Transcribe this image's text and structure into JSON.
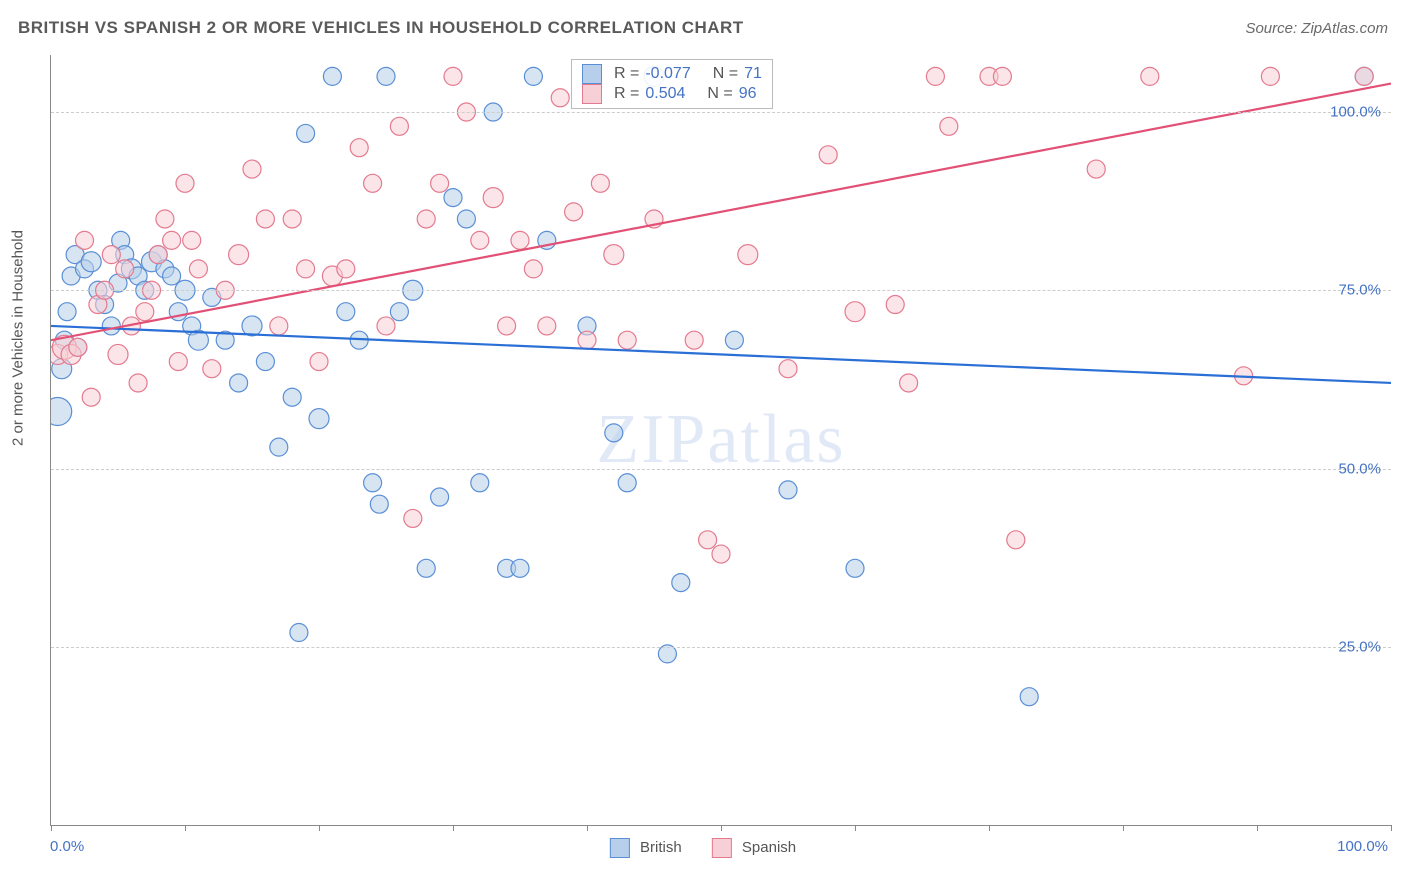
{
  "title": "BRITISH VS SPANISH 2 OR MORE VEHICLES IN HOUSEHOLD CORRELATION CHART",
  "source": "Source: ZipAtlas.com",
  "watermark": "ZIPatlas",
  "ylabel": "2 or more Vehicles in Household",
  "xaxis": {
    "min_label": "0.0%",
    "max_label": "100.0%",
    "xlim": [
      0,
      100
    ],
    "ticks": [
      0,
      10,
      20,
      30,
      40,
      50,
      60,
      70,
      80,
      90,
      100
    ]
  },
  "yaxis": {
    "ylim": [
      0,
      108
    ],
    "ticks": [
      25,
      50,
      75,
      100
    ],
    "tick_labels": [
      "25.0%",
      "50.0%",
      "75.0%",
      "100.0%"
    ]
  },
  "grid_color": "#cccccc",
  "background_color": "#ffffff",
  "legend": {
    "bottom": [
      {
        "label": "British",
        "fill": "#b7cfea",
        "stroke": "#5a8fd6"
      },
      {
        "label": "Spanish",
        "fill": "#f7cfd6",
        "stroke": "#e47a8f"
      }
    ],
    "top": [
      {
        "fill": "#b7cfea",
        "stroke": "#5a8fd6",
        "r_label": "R =",
        "r_val": "-0.077",
        "n_label": "N =",
        "n_val": "71"
      },
      {
        "fill": "#f7cfd6",
        "stroke": "#e47a8f",
        "r_label": "R =",
        "r_val": "0.504",
        "n_label": "N =",
        "n_val": "96"
      }
    ]
  },
  "series": {
    "british": {
      "type": "scatter",
      "fill": "#b7cfea",
      "stroke": "#5a8fd6",
      "marker_radius": 9,
      "fill_opacity": 0.55,
      "trend": {
        "x1": 0,
        "y1": 70,
        "x2": 100,
        "y2": 62,
        "color": "#2a6fd6",
        "width": 2.2
      },
      "points": [
        [
          0.5,
          58,
          14
        ],
        [
          0.8,
          64,
          10
        ],
        [
          1.0,
          68,
          9
        ],
        [
          1.2,
          72,
          9
        ],
        [
          1.5,
          77,
          9
        ],
        [
          1.8,
          80,
          9
        ],
        [
          2.0,
          67,
          9
        ],
        [
          2.5,
          78,
          9
        ],
        [
          3.0,
          79,
          10
        ],
        [
          3.5,
          75,
          9
        ],
        [
          4.0,
          73,
          9
        ],
        [
          4.5,
          70,
          9
        ],
        [
          5.0,
          76,
          9
        ],
        [
          5.2,
          82,
          9
        ],
        [
          5.5,
          80,
          9
        ],
        [
          6.0,
          78,
          10
        ],
        [
          6.5,
          77,
          9
        ],
        [
          7.0,
          75,
          9
        ],
        [
          7.5,
          79,
          10
        ],
        [
          8.0,
          80,
          9
        ],
        [
          8.5,
          78,
          9
        ],
        [
          9.0,
          77,
          9
        ],
        [
          9.5,
          72,
          9
        ],
        [
          10.0,
          75,
          10
        ],
        [
          10.5,
          70,
          9
        ],
        [
          11.0,
          68,
          10
        ],
        [
          12.0,
          74,
          9
        ],
        [
          13.0,
          68,
          9
        ],
        [
          14.0,
          62,
          9
        ],
        [
          15.0,
          70,
          10
        ],
        [
          16.0,
          65,
          9
        ],
        [
          17.0,
          53,
          9
        ],
        [
          18.0,
          60,
          9
        ],
        [
          18.5,
          27,
          9
        ],
        [
          19.0,
          97,
          9
        ],
        [
          20.0,
          57,
          10
        ],
        [
          21.0,
          105,
          9
        ],
        [
          22.0,
          72,
          9
        ],
        [
          23.0,
          68,
          9
        ],
        [
          24.0,
          48,
          9
        ],
        [
          24.5,
          45,
          9
        ],
        [
          25.0,
          105,
          9
        ],
        [
          26.0,
          72,
          9
        ],
        [
          27.0,
          75,
          10
        ],
        [
          28.0,
          36,
          9
        ],
        [
          29.0,
          46,
          9
        ],
        [
          30.0,
          88,
          9
        ],
        [
          31.0,
          85,
          9
        ],
        [
          32.0,
          48,
          9
        ],
        [
          33.0,
          100,
          9
        ],
        [
          34.0,
          36,
          9
        ],
        [
          35.0,
          36,
          9
        ],
        [
          36.0,
          105,
          9
        ],
        [
          37.0,
          82,
          9
        ],
        [
          40.0,
          70,
          9
        ],
        [
          42.0,
          55,
          9
        ],
        [
          43.0,
          48,
          9
        ],
        [
          45.0,
          105,
          10
        ],
        [
          46.0,
          24,
          9
        ],
        [
          47.0,
          34,
          9
        ],
        [
          51.0,
          68,
          9
        ],
        [
          55.0,
          47,
          9
        ],
        [
          60.0,
          36,
          9
        ],
        [
          73.0,
          18,
          9
        ],
        [
          98.0,
          105,
          9
        ]
      ]
    },
    "spanish": {
      "type": "scatter",
      "fill": "#f7cfd6",
      "stroke": "#e47a8f",
      "marker_radius": 9,
      "fill_opacity": 0.55,
      "trend": {
        "x1": 0,
        "y1": 68,
        "x2": 100,
        "y2": 104,
        "color": "#e25075",
        "width": 2.2
      },
      "points": [
        [
          0.5,
          66,
          10
        ],
        [
          1.0,
          67,
          12
        ],
        [
          1.5,
          66,
          10
        ],
        [
          2.0,
          67,
          9
        ],
        [
          2.5,
          82,
          9
        ],
        [
          3.0,
          60,
          9
        ],
        [
          3.5,
          73,
          9
        ],
        [
          4.0,
          75,
          9
        ],
        [
          4.5,
          80,
          9
        ],
        [
          5.0,
          66,
          10
        ],
        [
          5.5,
          78,
          9
        ],
        [
          6.0,
          70,
          9
        ],
        [
          6.5,
          62,
          9
        ],
        [
          7.0,
          72,
          9
        ],
        [
          7.5,
          75,
          9
        ],
        [
          8.0,
          80,
          9
        ],
        [
          8.5,
          85,
          9
        ],
        [
          9.0,
          82,
          9
        ],
        [
          9.5,
          65,
          9
        ],
        [
          10.0,
          90,
          9
        ],
        [
          10.5,
          82,
          9
        ],
        [
          11.0,
          78,
          9
        ],
        [
          12.0,
          64,
          9
        ],
        [
          13.0,
          75,
          9
        ],
        [
          14.0,
          80,
          10
        ],
        [
          15.0,
          92,
          9
        ],
        [
          16.0,
          85,
          9
        ],
        [
          17.0,
          70,
          9
        ],
        [
          18.0,
          85,
          9
        ],
        [
          19.0,
          78,
          9
        ],
        [
          20.0,
          65,
          9
        ],
        [
          21.0,
          77,
          10
        ],
        [
          22.0,
          78,
          9
        ],
        [
          23.0,
          95,
          9
        ],
        [
          24.0,
          90,
          9
        ],
        [
          25.0,
          70,
          9
        ],
        [
          26.0,
          98,
          9
        ],
        [
          27.0,
          43,
          9
        ],
        [
          28.0,
          85,
          9
        ],
        [
          29.0,
          90,
          9
        ],
        [
          30.0,
          105,
          9
        ],
        [
          31.0,
          100,
          9
        ],
        [
          32.0,
          82,
          9
        ],
        [
          33.0,
          88,
          10
        ],
        [
          34.0,
          70,
          9
        ],
        [
          35.0,
          82,
          9
        ],
        [
          36.0,
          78,
          9
        ],
        [
          37.0,
          70,
          9
        ],
        [
          38.0,
          102,
          9
        ],
        [
          39.0,
          86,
          9
        ],
        [
          40.0,
          68,
          9
        ],
        [
          41.0,
          90,
          9
        ],
        [
          42.0,
          80,
          10
        ],
        [
          43.0,
          68,
          9
        ],
        [
          45.0,
          85,
          9
        ],
        [
          48.0,
          68,
          9
        ],
        [
          49.0,
          40,
          9
        ],
        [
          50.0,
          38,
          9
        ],
        [
          52.0,
          80,
          10
        ],
        [
          55.0,
          64,
          9
        ],
        [
          58.0,
          94,
          9
        ],
        [
          60.0,
          72,
          10
        ],
        [
          63.0,
          73,
          9
        ],
        [
          64.0,
          62,
          9
        ],
        [
          66.0,
          105,
          9
        ],
        [
          67.0,
          98,
          9
        ],
        [
          70.0,
          105,
          9
        ],
        [
          71.0,
          105,
          9
        ],
        [
          72.0,
          40,
          9
        ],
        [
          78.0,
          92,
          9
        ],
        [
          82.0,
          105,
          9
        ],
        [
          89.0,
          63,
          9
        ],
        [
          91.0,
          105,
          9
        ],
        [
          98.0,
          105,
          9
        ]
      ]
    }
  }
}
